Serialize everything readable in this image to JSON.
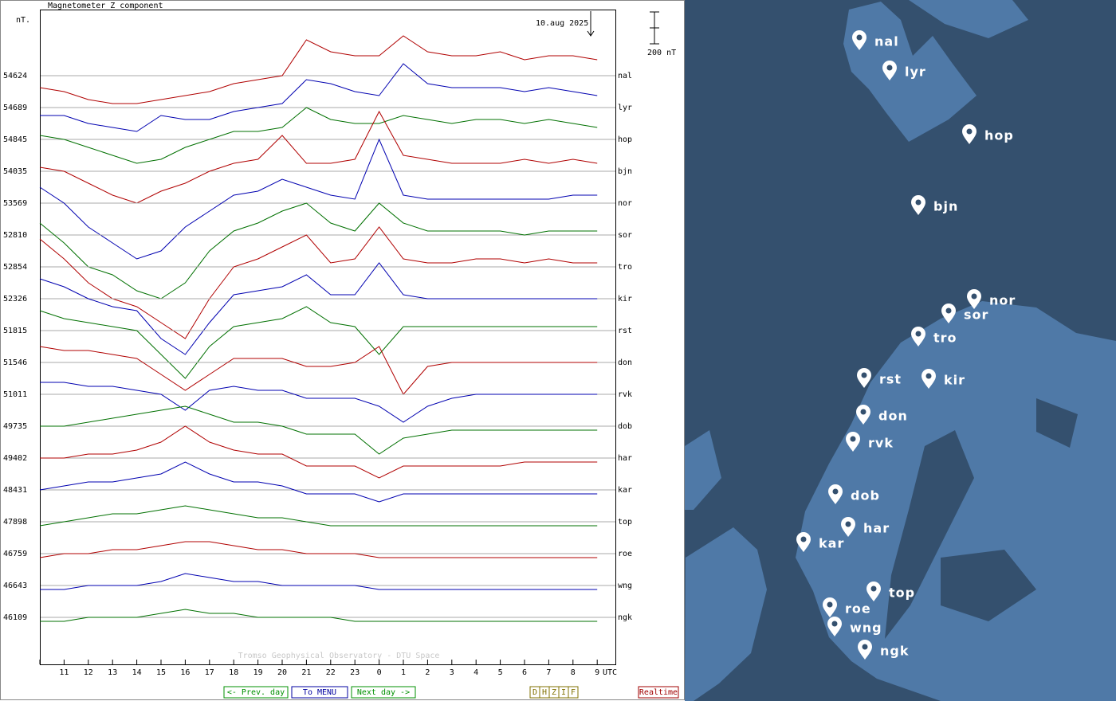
{
  "chart_data": {
    "type": "line",
    "title": "Magnetometer Z component",
    "unit_label": "nT.",
    "date_label": "10.aug 2025",
    "x_label": "UTC",
    "credit": "Tromso Geophysical Observatory - DTU Space",
    "scale_bar": {
      "value": 200,
      "label": "200 nT"
    },
    "categories": [
      null,
      "11",
      "12",
      "13",
      "14",
      "15",
      "16",
      "17",
      "18",
      "19",
      "20",
      "21",
      "22",
      "23",
      "0",
      "1",
      "2",
      "3",
      "4",
      "5",
      "6",
      "7",
      "8",
      "9"
    ],
    "grid": true,
    "series": [
      {
        "name": "nal",
        "baseline": 54624,
        "color": "#b00000",
        "values": [
          -75,
          -100,
          -150,
          -175,
          -175,
          -150,
          -125,
          -100,
          -50,
          -25,
          0,
          225,
          150,
          125,
          125,
          250,
          150,
          125,
          125,
          150,
          100,
          125,
          125,
          100
        ]
      },
      {
        "name": "lyr",
        "baseline": 54689,
        "color": "#0000b0",
        "values": [
          -50,
          -50,
          -100,
          -125,
          -150,
          -50,
          -75,
          -75,
          -25,
          0,
          25,
          175,
          150,
          100,
          75,
          275,
          150,
          125,
          125,
          125,
          100,
          125,
          100,
          75
        ]
      },
      {
        "name": "hop",
        "baseline": 54845,
        "color": "#007000",
        "values": [
          25,
          0,
          -50,
          -100,
          -150,
          -125,
          -50,
          0,
          50,
          50,
          75,
          200,
          125,
          100,
          100,
          150,
          125,
          100,
          125,
          125,
          100,
          125,
          100,
          75
        ]
      },
      {
        "name": "bjn",
        "baseline": 54035,
        "color": "#b00000",
        "values": [
          25,
          0,
          -75,
          -150,
          -200,
          -125,
          -75,
          0,
          50,
          75,
          225,
          50,
          50,
          75,
          375,
          100,
          75,
          50,
          50,
          50,
          75,
          50,
          75,
          50
        ]
      },
      {
        "name": "nor",
        "baseline": 53569,
        "color": "#0000b0",
        "values": [
          100,
          0,
          -150,
          -250,
          -350,
          -300,
          -150,
          -50,
          50,
          75,
          150,
          100,
          50,
          25,
          400,
          50,
          25,
          25,
          25,
          25,
          25,
          25,
          50,
          50
        ]
      },
      {
        "name": "sor",
        "baseline": 52810,
        "color": "#007000",
        "values": [
          75,
          -50,
          -200,
          -250,
          -350,
          -400,
          -300,
          -100,
          25,
          75,
          150,
          200,
          75,
          25,
          200,
          75,
          25,
          25,
          25,
          25,
          0,
          25,
          25,
          25
        ]
      },
      {
        "name": "tro",
        "baseline": 52854,
        "color": "#b00000",
        "values": [
          175,
          50,
          -100,
          -200,
          -250,
          -350,
          -450,
          -200,
          0,
          50,
          125,
          200,
          25,
          50,
          250,
          50,
          25,
          25,
          50,
          50,
          25,
          50,
          25,
          25
        ]
      },
      {
        "name": "kir",
        "baseline": 52326,
        "color": "#0000b0",
        "values": [
          125,
          75,
          0,
          -50,
          -75,
          -250,
          -350,
          -150,
          25,
          50,
          75,
          150,
          25,
          25,
          225,
          25,
          0,
          0,
          0,
          0,
          0,
          0,
          0,
          0
        ]
      },
      {
        "name": "rst",
        "baseline": 51815,
        "color": "#007000",
        "values": [
          125,
          75,
          50,
          25,
          0,
          -150,
          -300,
          -100,
          25,
          50,
          75,
          150,
          50,
          25,
          -150,
          25,
          25,
          25,
          25,
          25,
          25,
          25,
          25,
          25
        ]
      },
      {
        "name": "don",
        "baseline": 51546,
        "color": "#b00000",
        "values": [
          100,
          75,
          75,
          50,
          25,
          -75,
          -175,
          -75,
          25,
          25,
          25,
          -25,
          -25,
          0,
          100,
          -200,
          -25,
          0,
          0,
          0,
          0,
          0,
          0,
          0
        ]
      },
      {
        "name": "rvk",
        "baseline": 51011,
        "color": "#0000b0",
        "values": [
          75,
          75,
          50,
          50,
          25,
          0,
          -100,
          25,
          50,
          25,
          25,
          -25,
          -25,
          -25,
          -75,
          -175,
          -75,
          -25,
          0,
          0,
          0,
          0,
          0,
          0
        ]
      },
      {
        "name": "dob",
        "baseline": 49735,
        "color": "#007000",
        "values": [
          0,
          0,
          25,
          50,
          75,
          100,
          125,
          75,
          25,
          25,
          0,
          -50,
          -50,
          -50,
          -175,
          -75,
          -50,
          -25,
          -25,
          -25,
          -25,
          -25,
          -25,
          -25
        ]
      },
      {
        "name": "har",
        "baseline": 49402,
        "color": "#b00000",
        "values": [
          0,
          0,
          25,
          25,
          50,
          100,
          200,
          100,
          50,
          25,
          25,
          -50,
          -50,
          -50,
          -125,
          -50,
          -50,
          -50,
          -50,
          -50,
          -25,
          -25,
          -25,
          -25
        ]
      },
      {
        "name": "kar",
        "baseline": 48431,
        "color": "#0000b0",
        "values": [
          0,
          25,
          50,
          50,
          75,
          100,
          175,
          100,
          50,
          50,
          25,
          -25,
          -25,
          -25,
          -75,
          -25,
          -25,
          -25,
          -25,
          -25,
          -25,
          -25,
          -25,
          -25
        ]
      },
      {
        "name": "top",
        "baseline": 47898,
        "color": "#007000",
        "values": [
          -25,
          0,
          25,
          50,
          50,
          75,
          100,
          75,
          50,
          25,
          25,
          0,
          -25,
          -25,
          -25,
          -25,
          -25,
          -25,
          -25,
          -25,
          -25,
          -25,
          -25,
          -25
        ]
      },
      {
        "name": "roe",
        "baseline": 46759,
        "color": "#b00000",
        "values": [
          -25,
          0,
          0,
          25,
          25,
          50,
          75,
          75,
          50,
          25,
          25,
          0,
          0,
          0,
          -25,
          -25,
          -25,
          -25,
          -25,
          -25,
          -25,
          -25,
          -25,
          -25
        ]
      },
      {
        "name": "wng",
        "baseline": 46643,
        "color": "#0000b0",
        "values": [
          -25,
          -25,
          0,
          0,
          0,
          25,
          75,
          50,
          25,
          25,
          0,
          0,
          0,
          0,
          -25,
          -25,
          -25,
          -25,
          -25,
          -25,
          -25,
          -25,
          -25,
          -25
        ]
      },
      {
        "name": "ngk",
        "baseline": 46109,
        "color": "#007000",
        "values": [
          -25,
          -25,
          0,
          0,
          0,
          25,
          50,
          25,
          25,
          0,
          0,
          0,
          0,
          -25,
          -25,
          -25,
          -25,
          -25,
          -25,
          -25,
          -25,
          -25,
          -25,
          -25
        ]
      }
    ]
  },
  "nav": {
    "prev": "<- Prev. day",
    "menu": "To MENU",
    "next": "Next day ->",
    "components": [
      "D",
      "H",
      "Z",
      "I",
      "F"
    ],
    "realtime": "Realtime"
  },
  "map": {
    "stations": [
      "nal",
      "lyr",
      "hop",
      "bjn",
      "nor",
      "sor",
      "tro",
      "rst",
      "kir",
      "don",
      "rvk",
      "dob",
      "har",
      "kar",
      "top",
      "roe",
      "wng",
      "ngk"
    ]
  }
}
